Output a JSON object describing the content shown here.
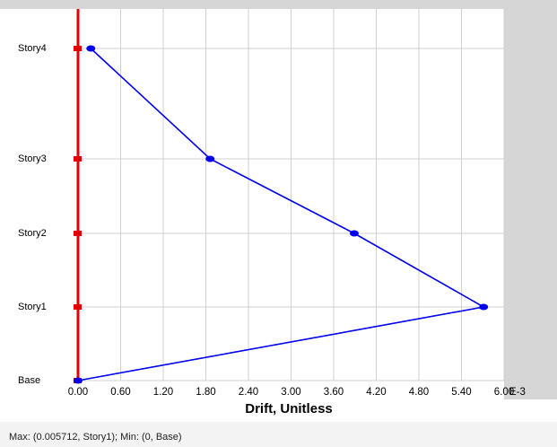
{
  "chart_data": {
    "type": "line",
    "xlabel": "Drift, Unitless",
    "x_multiplier": "E-3",
    "categories": [
      "Base",
      "Story1",
      "Story2",
      "Story3",
      "Story4"
    ],
    "series": [
      {
        "name": "Drift",
        "color": "#0000ee",
        "values": [
          0,
          5.712,
          3.89,
          1.86,
          0.18
        ]
      }
    ],
    "xlim": [
      0,
      6
    ],
    "xticks": [
      {
        "value": 0,
        "label": "0.00"
      },
      {
        "value": 0.6,
        "label": "0.60"
      },
      {
        "value": 1.2,
        "label": "1.20"
      },
      {
        "value": 1.8,
        "label": "1.80"
      },
      {
        "value": 2.4,
        "label": "2.40"
      },
      {
        "value": 3,
        "label": "3.00"
      },
      {
        "value": 3.6,
        "label": "3.60"
      },
      {
        "value": 4.2,
        "label": "4.20"
      },
      {
        "value": 4.8,
        "label": "4.80"
      },
      {
        "value": 5.4,
        "label": "5.40"
      },
      {
        "value": 6,
        "label": "6.00"
      }
    ],
    "grid": true,
    "axis_color": "#e00000",
    "status": "Max: (0.005712, Story1);  Min: (0, Base)"
  }
}
